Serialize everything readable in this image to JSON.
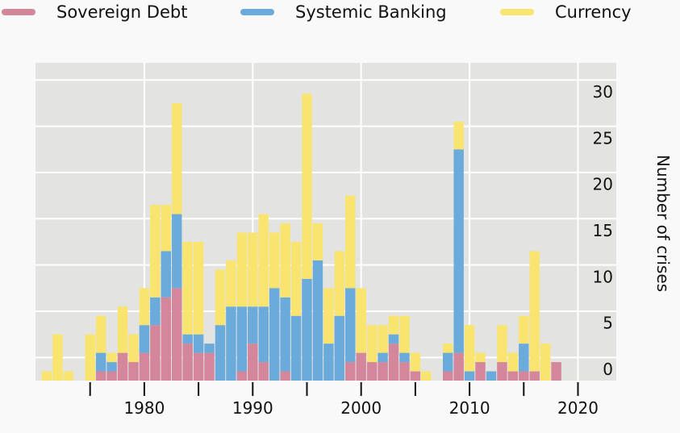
{
  "chart_data": {
    "type": "bar",
    "stacked": true,
    "ylabel": "Number of crises",
    "y_axis_side": "right",
    "ylim": [
      0,
      33
    ],
    "xlim": [
      1971,
      2025
    ],
    "x_ticks": [
      1975,
      1980,
      1985,
      1990,
      1995,
      2000,
      2005,
      2010,
      2015,
      2020
    ],
    "x_tick_labels": [
      "1980",
      "1990",
      "2000",
      "2010",
      "2020"
    ],
    "y_tick_labels": [
      "0",
      "5",
      "10",
      "15",
      "20",
      "25",
      "30"
    ],
    "grid": true,
    "legend_position": "top",
    "x": [
      1970,
      1971,
      1972,
      1973,
      1974,
      1975,
      1976,
      1977,
      1978,
      1979,
      1980,
      1981,
      1982,
      1983,
      1984,
      1985,
      1986,
      1987,
      1988,
      1989,
      1990,
      1991,
      1992,
      1993,
      1994,
      1995,
      1996,
      1997,
      1998,
      1999,
      2000,
      2001,
      2002,
      2003,
      2004,
      2005,
      2006,
      2007,
      2008,
      2009,
      2010,
      2011,
      2012,
      2013,
      2014,
      2015,
      2016,
      2017,
      2018
    ],
    "series": [
      {
        "name": "Sovereign Debt",
        "color": "#d4869a",
        "values": [
          0,
          0,
          0,
          0,
          0,
          0,
          1,
          1,
          3,
          2,
          3,
          6,
          9,
          10,
          4,
          3,
          3,
          0,
          0,
          1,
          4,
          2,
          0,
          1,
          0,
          0,
          0,
          0,
          0,
          2,
          3,
          2,
          2,
          4,
          2,
          1,
          0,
          0,
          1,
          3,
          0,
          2,
          0,
          2,
          1,
          1,
          1,
          0,
          2
        ]
      },
      {
        "name": "Systemic Banking",
        "color": "#6aabdb",
        "values": [
          0,
          0,
          0,
          0,
          0,
          0,
          2,
          1,
          0,
          0,
          3,
          3,
          5,
          8,
          1,
          2,
          1,
          6,
          8,
          7,
          4,
          6,
          10,
          8,
          7,
          11,
          13,
          4,
          7,
          8,
          0,
          0,
          1,
          1,
          1,
          0,
          0,
          0,
          2,
          22,
          1,
          0,
          1,
          0,
          0,
          3,
          0,
          0,
          0
        ]
      },
      {
        "name": "Currency",
        "color": "#f8e46e",
        "values": [
          0,
          1,
          5,
          1,
          0,
          5,
          4,
          1,
          5,
          3,
          4,
          10,
          5,
          12,
          10,
          10,
          0,
          6,
          5,
          8,
          8,
          10,
          6,
          8,
          8,
          20,
          4,
          6,
          7,
          10,
          7,
          4,
          3,
          2,
          4,
          2,
          1,
          0,
          1,
          3,
          5,
          1,
          0,
          4,
          2,
          3,
          13,
          4,
          0
        ]
      }
    ]
  }
}
